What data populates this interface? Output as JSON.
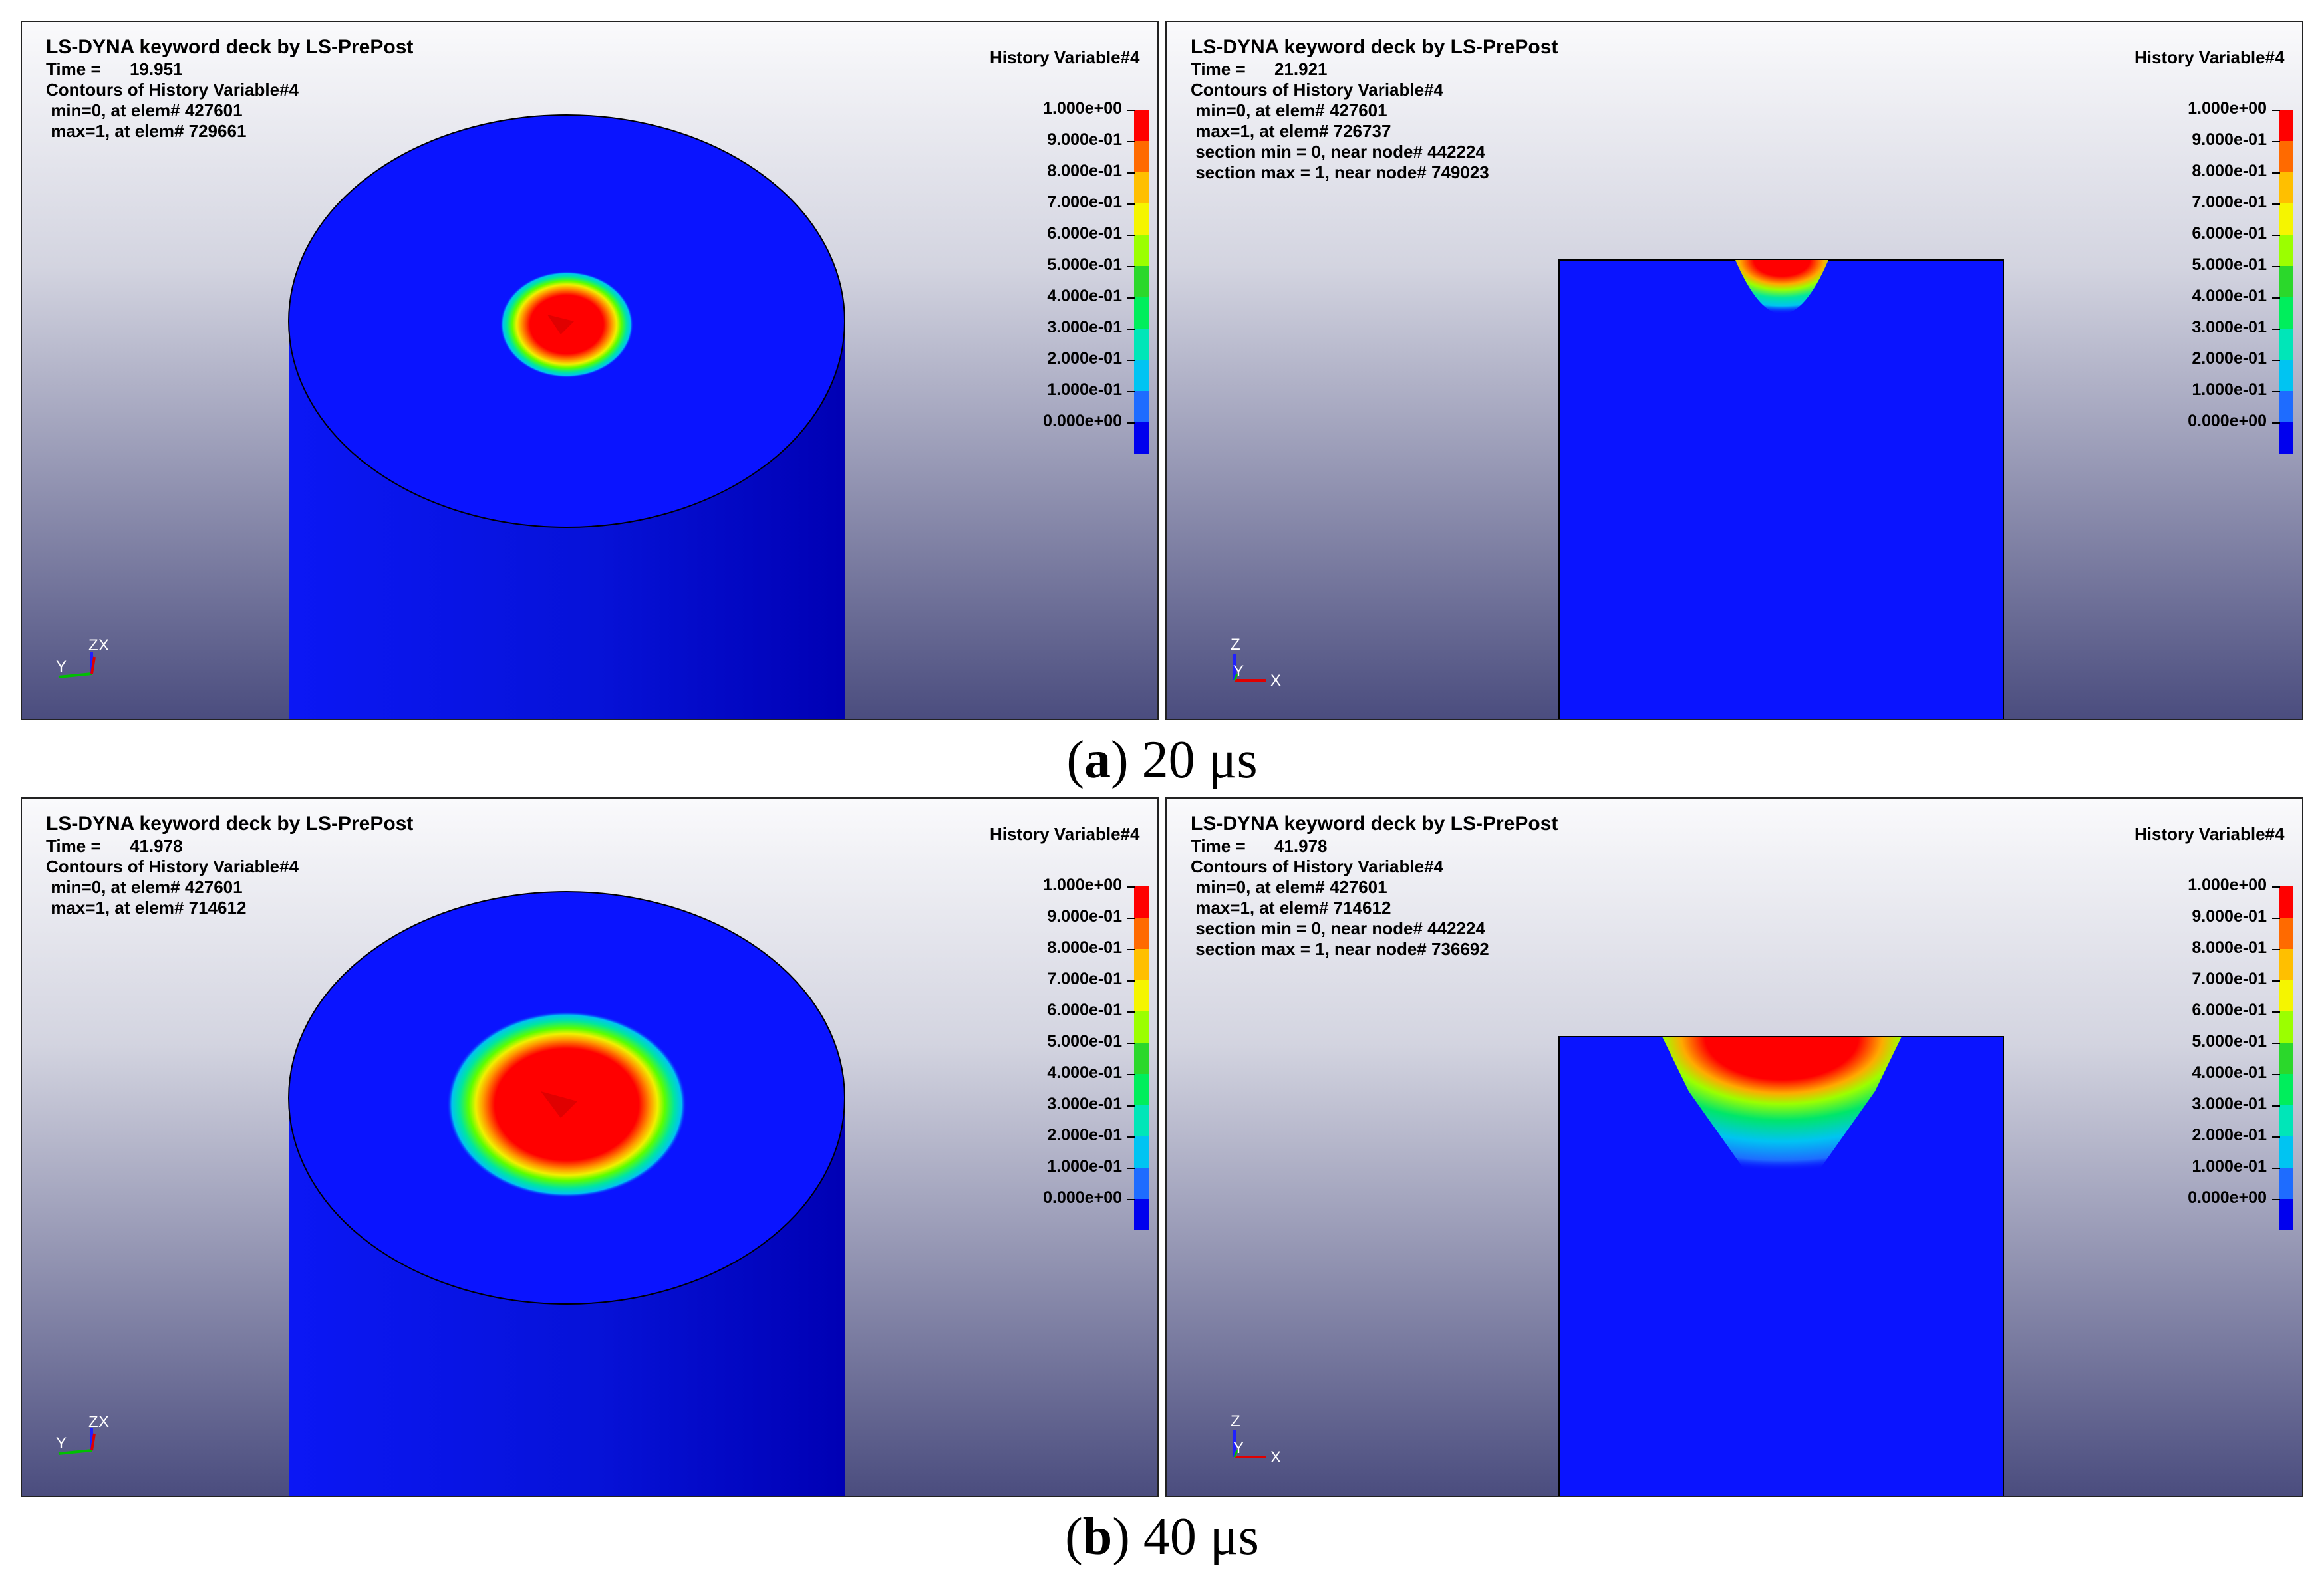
{
  "colors": {
    "mesh_blue": "#0a14ff",
    "mesh_dark": "#0000c4",
    "bg_top": "#fafafc",
    "bg_bottom": "#4a4c7e"
  },
  "legend": {
    "title": "History Variable#4",
    "labels": [
      "1.000e+00",
      "9.000e-01",
      "8.000e-01",
      "7.000e-01",
      "6.000e-01",
      "5.000e-01",
      "4.000e-01",
      "3.000e-01",
      "2.000e-01",
      "1.000e-01",
      "0.000e+00"
    ],
    "colors": [
      "#ff0000",
      "#ff6a00",
      "#ffbf00",
      "#f5f500",
      "#9bff00",
      "#2bd82b",
      "#00ee5c",
      "#00e6b8",
      "#00c4f2",
      "#1e6cff",
      "#0000ee"
    ]
  },
  "panels": [
    {
      "id": "a-left",
      "title": "LS-DYNA keyword deck by LS-PrePost",
      "time_label": "Time =",
      "time_value": "19.951",
      "lines": [
        "Contours of History Variable#4",
        " min=0, at elem# 427601",
        " max=1, at elem# 729661"
      ],
      "view": "iso",
      "axes": [
        "Y",
        "Z",
        "X"
      ],
      "damage_level": 0.2
    },
    {
      "id": "a-right",
      "title": "LS-DYNA keyword deck by LS-PrePost",
      "time_label": "Time =",
      "time_value": "21.921",
      "lines": [
        "Contours of History Variable#4",
        " min=0, at elem# 427601",
        " max=1, at elem# 726737",
        " section min = 0, near node# 442224",
        " section max = 1, near node# 749023"
      ],
      "view": "section",
      "axes": [
        "Z",
        "Y",
        "X"
      ],
      "damage_level": 0.2
    },
    {
      "id": "b-left",
      "title": "LS-DYNA keyword deck by LS-PrePost",
      "time_label": "Time =",
      "time_value": "41.978",
      "lines": [
        "Contours of History Variable#4",
        " min=0, at elem# 427601",
        " max=1, at elem# 714612"
      ],
      "view": "iso",
      "axes": [
        "Y",
        "Z",
        "X"
      ],
      "damage_level": 0.4
    },
    {
      "id": "b-right",
      "title": "LS-DYNA keyword deck by LS-PrePost",
      "time_label": "Time =",
      "time_value": "41.978",
      "lines": [
        "Contours of History Variable#4",
        " min=0, at elem# 427601",
        " max=1, at elem# 714612",
        " section min = 0, near node# 442224",
        " section max = 1, near node# 736692"
      ],
      "view": "section",
      "axes": [
        "Z",
        "Y",
        "X"
      ],
      "damage_level": 0.4
    }
  ],
  "captions": [
    {
      "letter": "a",
      "text": " 20 μs"
    },
    {
      "letter": "b",
      "text": " 40 μs"
    }
  ]
}
